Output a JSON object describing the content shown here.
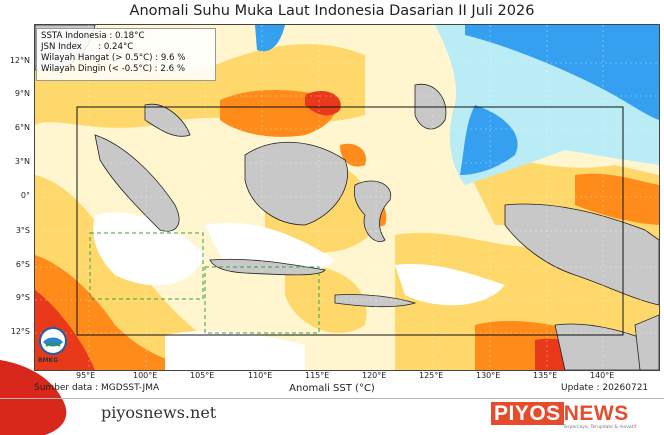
{
  "title": "Anomali Suhu Muka Laut Indonesia Dasarian II Juli 2026",
  "info": {
    "line1": "SSTA Indonesia : 0.18°C",
    "line2": "JSN Index      : 0.24°C",
    "line3": "Wilayah Hangat (> 0.5°C) : 9.6 %",
    "line4": "Wilayah Dingin (< -0.5°C) : 2.6 %"
  },
  "lat_labels": [
    "12°N",
    "9°N",
    "6°N",
    "3°N",
    "0°",
    "3°S",
    "6°S",
    "9°S",
    "12°S"
  ],
  "lon_labels": [
    "95°E",
    "100°E",
    "105°E",
    "110°E",
    "115°E",
    "120°E",
    "125°E",
    "130°E",
    "135°E",
    "140°E"
  ],
  "colorbar_label": "Anomali SST (°C)",
  "source": "Sumber data : MGDSST-JMA",
  "update": "Update : 20260721",
  "logo_text": "BMKG",
  "site": "piyosnews.net",
  "brand": {
    "part1": "PIYOS",
    "part2": "NEWS",
    "tagline": "Terpercaya, Terupdate & Inovatif"
  },
  "colors": {
    "warm_light": "#fff6cf",
    "warm": "#ffd86b",
    "warmer": "#ff8c1a",
    "hot": "#e83a1a",
    "cool": "#b9ecf5",
    "cold": "#35a0f0",
    "land": "#c8c8c8",
    "accent": "#e64c2b"
  }
}
